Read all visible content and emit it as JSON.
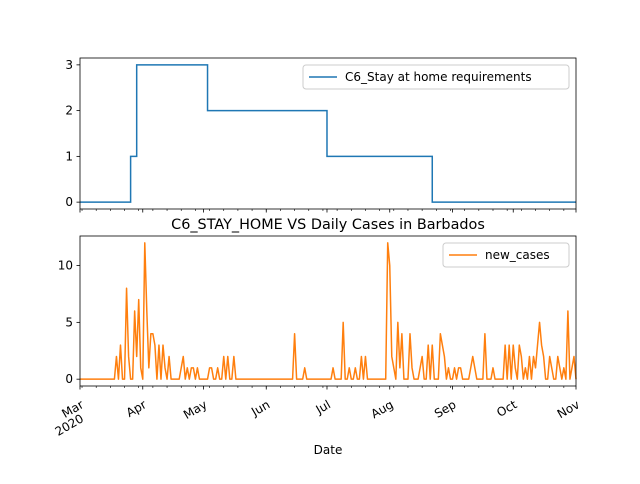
{
  "chart_data": [
    {
      "type": "line",
      "title": "",
      "xlabel": "",
      "ylabel": "",
      "x_range": [
        "2020-03-01",
        "2020-11-01"
      ],
      "ylim": [
        -0.15,
        3.15
      ],
      "yticks": [
        0,
        1,
        2,
        3
      ],
      "grid": false,
      "legend_position": "top-right",
      "series": [
        {
          "name": "C6_Stay at home requirements",
          "color": "#1f77b4",
          "steps": [
            {
              "from": "2020-03-01",
              "to": "2020-03-26",
              "value": 0
            },
            {
              "from": "2020-03-26",
              "to": "2020-03-29",
              "value": 1
            },
            {
              "from": "2020-03-29",
              "to": "2020-05-03",
              "value": 3
            },
            {
              "from": "2020-05-03",
              "to": "2020-07-01",
              "value": 2
            },
            {
              "from": "2020-07-01",
              "to": "2020-08-22",
              "value": 1
            },
            {
              "from": "2020-08-22",
              "to": "2020-11-01",
              "value": 0
            }
          ]
        }
      ]
    },
    {
      "type": "line",
      "title": "C6_STAY_HOME VS Daily Cases in Barbados",
      "xlabel": "Date",
      "ylabel": "",
      "x_range": [
        "2020-03-01",
        "2020-11-01"
      ],
      "ylim": [
        -0.6,
        12.6
      ],
      "yticks": [
        0,
        5,
        10
      ],
      "xticks": [
        {
          "date": "2020-03-01",
          "label": "Mar",
          "sublabel": "2020"
        },
        {
          "date": "2020-04-01",
          "label": "Apr"
        },
        {
          "date": "2020-05-01",
          "label": "May"
        },
        {
          "date": "2020-06-01",
          "label": "Jun"
        },
        {
          "date": "2020-07-01",
          "label": "Jul"
        },
        {
          "date": "2020-08-01",
          "label": "Aug"
        },
        {
          "date": "2020-09-01",
          "label": "Sep"
        },
        {
          "date": "2020-10-01",
          "label": "Oct"
        },
        {
          "date": "2020-11-01",
          "label": "Nov"
        }
      ],
      "grid": false,
      "legend_position": "top-right",
      "series": [
        {
          "name": "new_cases",
          "color": "#ff7f0e",
          "points": [
            [
              "2020-03-01",
              0
            ],
            [
              "2020-03-18",
              0
            ],
            [
              "2020-03-19",
              2
            ],
            [
              "2020-03-20",
              0
            ],
            [
              "2020-03-21",
              3
            ],
            [
              "2020-03-22",
              0
            ],
            [
              "2020-03-23",
              0
            ],
            [
              "2020-03-24",
              8
            ],
            [
              "2020-03-25",
              2
            ],
            [
              "2020-03-26",
              0
            ],
            [
              "2020-03-27",
              0
            ],
            [
              "2020-03-28",
              6
            ],
            [
              "2020-03-29",
              2
            ],
            [
              "2020-03-30",
              7
            ],
            [
              "2020-03-31",
              1
            ],
            [
              "2020-04-01",
              0
            ],
            [
              "2020-04-02",
              12
            ],
            [
              "2020-04-03",
              6
            ],
            [
              "2020-04-04",
              1
            ],
            [
              "2020-04-05",
              4
            ],
            [
              "2020-04-06",
              4
            ],
            [
              "2020-04-07",
              3
            ],
            [
              "2020-04-08",
              0
            ],
            [
              "2020-04-09",
              3
            ],
            [
              "2020-04-10",
              0
            ],
            [
              "2020-04-11",
              3
            ],
            [
              "2020-04-12",
              1
            ],
            [
              "2020-04-13",
              0
            ],
            [
              "2020-04-14",
              2
            ],
            [
              "2020-04-15",
              0
            ],
            [
              "2020-04-16",
              0
            ],
            [
              "2020-04-17",
              0
            ],
            [
              "2020-04-18",
              0
            ],
            [
              "2020-04-19",
              0
            ],
            [
              "2020-04-20",
              1
            ],
            [
              "2020-04-21",
              2
            ],
            [
              "2020-04-22",
              0
            ],
            [
              "2020-04-23",
              1
            ],
            [
              "2020-04-24",
              0
            ],
            [
              "2020-04-25",
              1
            ],
            [
              "2020-04-26",
              1
            ],
            [
              "2020-04-27",
              0
            ],
            [
              "2020-04-28",
              1
            ],
            [
              "2020-04-29",
              0
            ],
            [
              "2020-04-30",
              0
            ],
            [
              "2020-05-01",
              0
            ],
            [
              "2020-05-02",
              0
            ],
            [
              "2020-05-03",
              0
            ],
            [
              "2020-05-04",
              1
            ],
            [
              "2020-05-05",
              1
            ],
            [
              "2020-05-06",
              0
            ],
            [
              "2020-05-07",
              0
            ],
            [
              "2020-05-08",
              1
            ],
            [
              "2020-05-09",
              0
            ],
            [
              "2020-05-10",
              0
            ],
            [
              "2020-05-11",
              2
            ],
            [
              "2020-05-12",
              0
            ],
            [
              "2020-05-13",
              2
            ],
            [
              "2020-05-14",
              0
            ],
            [
              "2020-05-15",
              0
            ],
            [
              "2020-05-16",
              2
            ],
            [
              "2020-05-17",
              0
            ],
            [
              "2020-05-18",
              0
            ],
            [
              "2020-05-19",
              0
            ],
            [
              "2020-06-14",
              0
            ],
            [
              "2020-06-15",
              4
            ],
            [
              "2020-06-16",
              0
            ],
            [
              "2020-06-19",
              0
            ],
            [
              "2020-06-20",
              1
            ],
            [
              "2020-06-21",
              0
            ],
            [
              "2020-07-03",
              0
            ],
            [
              "2020-07-04",
              1
            ],
            [
              "2020-07-05",
              0
            ],
            [
              "2020-07-08",
              0
            ],
            [
              "2020-07-09",
              5
            ],
            [
              "2020-07-10",
              0
            ],
            [
              "2020-07-11",
              0
            ],
            [
              "2020-07-12",
              1
            ],
            [
              "2020-07-13",
              0
            ],
            [
              "2020-07-14",
              0
            ],
            [
              "2020-07-15",
              1
            ],
            [
              "2020-07-16",
              0
            ],
            [
              "2020-07-17",
              0
            ],
            [
              "2020-07-18",
              2
            ],
            [
              "2020-07-19",
              0
            ],
            [
              "2020-07-20",
              2
            ],
            [
              "2020-07-21",
              0
            ],
            [
              "2020-07-22",
              0
            ],
            [
              "2020-07-23",
              0
            ],
            [
              "2020-07-24",
              0
            ],
            [
              "2020-07-25",
              0
            ],
            [
              "2020-07-26",
              0
            ],
            [
              "2020-07-27",
              0
            ],
            [
              "2020-07-28",
              0
            ],
            [
              "2020-07-29",
              0
            ],
            [
              "2020-07-30",
              0
            ],
            [
              "2020-07-31",
              12
            ],
            [
              "2020-08-01",
              10
            ],
            [
              "2020-08-02",
              2
            ],
            [
              "2020-08-03",
              1
            ],
            [
              "2020-08-04",
              0
            ],
            [
              "2020-08-05",
              5
            ],
            [
              "2020-08-06",
              1
            ],
            [
              "2020-08-07",
              4
            ],
            [
              "2020-08-08",
              0
            ],
            [
              "2020-08-09",
              0
            ],
            [
              "2020-08-10",
              0
            ],
            [
              "2020-08-11",
              4
            ],
            [
              "2020-08-12",
              1
            ],
            [
              "2020-08-13",
              0
            ],
            [
              "2020-08-14",
              0
            ],
            [
              "2020-08-15",
              0
            ],
            [
              "2020-08-16",
              1
            ],
            [
              "2020-08-17",
              2
            ],
            [
              "2020-08-18",
              0
            ],
            [
              "2020-08-19",
              0
            ],
            [
              "2020-08-20",
              3
            ],
            [
              "2020-08-21",
              0
            ],
            [
              "2020-08-22",
              3
            ],
            [
              "2020-08-23",
              0
            ],
            [
              "2020-08-24",
              0
            ],
            [
              "2020-08-25",
              0
            ],
            [
              "2020-08-26",
              4
            ],
            [
              "2020-08-27",
              3
            ],
            [
              "2020-08-28",
              2
            ],
            [
              "2020-08-29",
              0
            ],
            [
              "2020-08-30",
              1
            ],
            [
              "2020-08-31",
              0
            ],
            [
              "2020-09-01",
              0
            ],
            [
              "2020-09-02",
              1
            ],
            [
              "2020-09-03",
              0
            ],
            [
              "2020-09-04",
              1
            ],
            [
              "2020-09-05",
              1
            ],
            [
              "2020-09-06",
              0
            ],
            [
              "2020-09-07",
              0
            ],
            [
              "2020-09-08",
              0
            ],
            [
              "2020-09-09",
              0
            ],
            [
              "2020-09-10",
              1
            ],
            [
              "2020-09-11",
              2
            ],
            [
              "2020-09-12",
              1
            ],
            [
              "2020-09-13",
              0
            ],
            [
              "2020-09-14",
              0
            ],
            [
              "2020-09-15",
              0
            ],
            [
              "2020-09-16",
              0
            ],
            [
              "2020-09-17",
              4
            ],
            [
              "2020-09-18",
              0
            ],
            [
              "2020-09-19",
              0
            ],
            [
              "2020-09-20",
              0
            ],
            [
              "2020-09-21",
              1
            ],
            [
              "2020-09-22",
              0
            ],
            [
              "2020-09-23",
              0
            ],
            [
              "2020-09-24",
              0
            ],
            [
              "2020-09-25",
              0
            ],
            [
              "2020-09-26",
              0
            ],
            [
              "2020-09-27",
              3
            ],
            [
              "2020-09-28",
              0
            ],
            [
              "2020-09-29",
              3
            ],
            [
              "2020-09-30",
              0
            ],
            [
              "2020-10-01",
              3
            ],
            [
              "2020-10-02",
              1
            ],
            [
              "2020-10-03",
              0
            ],
            [
              "2020-10-04",
              3
            ],
            [
              "2020-10-05",
              2
            ],
            [
              "2020-10-06",
              0
            ],
            [
              "2020-10-07",
              1
            ],
            [
              "2020-10-08",
              0
            ],
            [
              "2020-10-09",
              2
            ],
            [
              "2020-10-10",
              0
            ],
            [
              "2020-10-11",
              2
            ],
            [
              "2020-10-12",
              1
            ],
            [
              "2020-10-13",
              3
            ],
            [
              "2020-10-14",
              5
            ],
            [
              "2020-10-15",
              3
            ],
            [
              "2020-10-16",
              2
            ],
            [
              "2020-10-17",
              0
            ],
            [
              "2020-10-18",
              0
            ],
            [
              "2020-10-19",
              2
            ],
            [
              "2020-10-20",
              1
            ],
            [
              "2020-10-21",
              0
            ],
            [
              "2020-10-22",
              0
            ],
            [
              "2020-10-23",
              2
            ],
            [
              "2020-10-24",
              1
            ],
            [
              "2020-10-25",
              0
            ],
            [
              "2020-10-26",
              1
            ],
            [
              "2020-10-27",
              0
            ],
            [
              "2020-10-28",
              6
            ],
            [
              "2020-10-29",
              0
            ],
            [
              "2020-10-30",
              1
            ],
            [
              "2020-10-31",
              2
            ],
            [
              "2020-11-01",
              0
            ]
          ]
        }
      ]
    }
  ]
}
